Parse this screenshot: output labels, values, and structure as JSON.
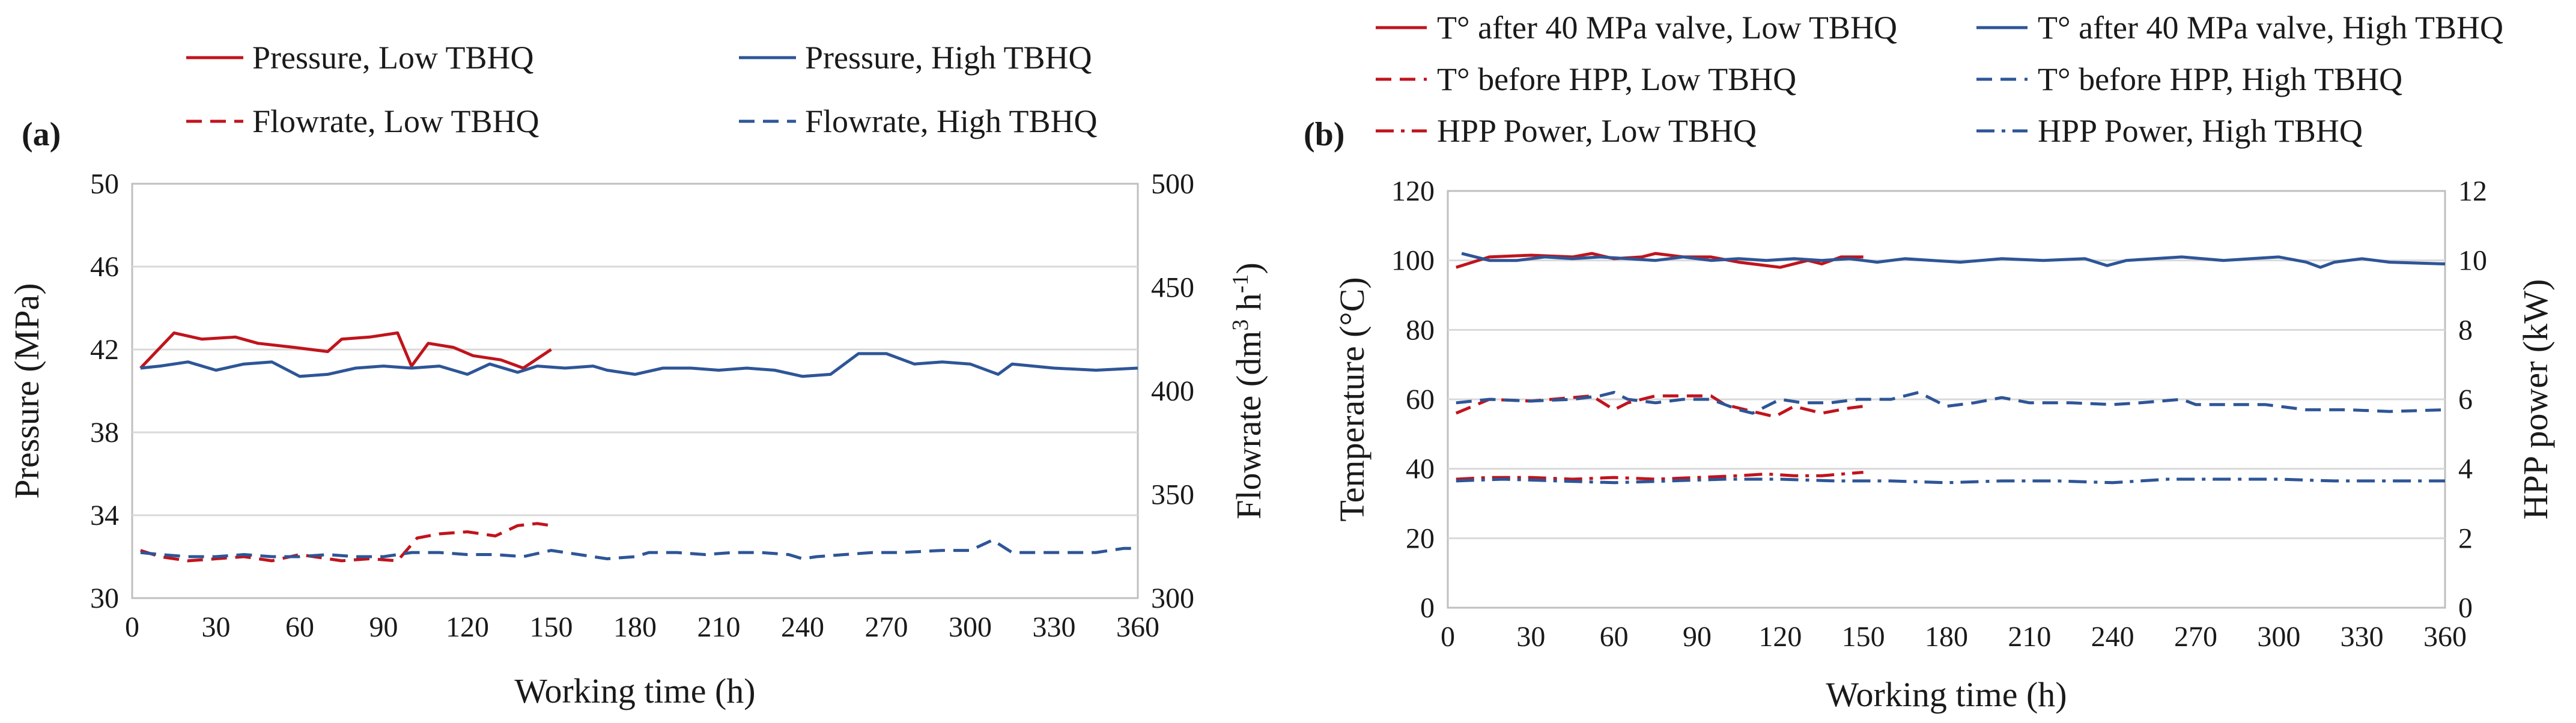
{
  "colors": {
    "low": "#c0141c",
    "high": "#2e5597",
    "grid": "#d9d9d9",
    "axis": "#bfbfbf"
  },
  "chart_data": [
    {
      "panel_label": "(a)",
      "type": "line",
      "xlabel": "Working time (h)",
      "ylabel_left": "Pressure (MPa)",
      "ylabel_right": "Flowrate (dm³ h⁻¹)",
      "ylabel_right_main": "Flowrate (dm",
      "ylabel_right_sup1": "3",
      "ylabel_right_mid": " h",
      "ylabel_right_sup2": "-1",
      "ylabel_right_end": ")",
      "xlim": [
        0,
        360
      ],
      "ylim_left": [
        30,
        50
      ],
      "ylim_right": [
        300,
        500
      ],
      "x_ticks": [
        "0",
        "30",
        "60",
        "90",
        "120",
        "150",
        "180",
        "210",
        "240",
        "270",
        "300",
        "330",
        "360"
      ],
      "y_ticks_left": [
        "30",
        "34",
        "38",
        "42",
        "46",
        "50"
      ],
      "y_ticks_right": [
        "300",
        "350",
        "400",
        "450",
        "500"
      ],
      "grid": true,
      "legend_position": "top",
      "series": [
        {
          "name": "Pressure, Low TBHQ",
          "color": "low",
          "dash": "solid",
          "axis": "left",
          "points": [
            [
              3,
              41.1
            ],
            [
              15,
              42.8
            ],
            [
              25,
              42.5
            ],
            [
              37,
              42.6
            ],
            [
              45,
              42.3
            ],
            [
              58,
              42.1
            ],
            [
              70,
              41.9
            ],
            [
              75,
              42.5
            ],
            [
              85,
              42.6
            ],
            [
              95,
              42.8
            ],
            [
              100,
              41.2
            ],
            [
              106,
              42.3
            ],
            [
              115,
              42.1
            ],
            [
              122,
              41.7
            ],
            [
              132,
              41.5
            ],
            [
              140,
              41.1
            ],
            [
              150,
              42.0
            ]
          ]
        },
        {
          "name": "Pressure, High TBHQ",
          "color": "high",
          "dash": "solid",
          "axis": "left",
          "points": [
            [
              3,
              41.1
            ],
            [
              10,
              41.2
            ],
            [
              20,
              41.4
            ],
            [
              30,
              41.0
            ],
            [
              40,
              41.3
            ],
            [
              50,
              41.4
            ],
            [
              60,
              40.7
            ],
            [
              70,
              40.8
            ],
            [
              80,
              41.1
            ],
            [
              90,
              41.2
            ],
            [
              100,
              41.1
            ],
            [
              110,
              41.2
            ],
            [
              120,
              40.8
            ],
            [
              128,
              41.3
            ],
            [
              138,
              40.9
            ],
            [
              145,
              41.2
            ],
            [
              155,
              41.1
            ],
            [
              165,
              41.2
            ],
            [
              170,
              41.0
            ],
            [
              180,
              40.8
            ],
            [
              190,
              41.1
            ],
            [
              200,
              41.1
            ],
            [
              210,
              41.0
            ],
            [
              220,
              41.1
            ],
            [
              230,
              41.0
            ],
            [
              240,
              40.7
            ],
            [
              250,
              40.8
            ],
            [
              260,
              41.8
            ],
            [
              270,
              41.8
            ],
            [
              280,
              41.3
            ],
            [
              290,
              41.4
            ],
            [
              300,
              41.3
            ],
            [
              310,
              40.8
            ],
            [
              315,
              41.3
            ],
            [
              330,
              41.1
            ],
            [
              345,
              41.0
            ],
            [
              360,
              41.1
            ]
          ]
        },
        {
          "name": "Flowrate, Low TBHQ",
          "color": "low",
          "dash": "dash",
          "axis": "right",
          "points": [
            [
              3,
              323
            ],
            [
              10,
              320
            ],
            [
              20,
              318
            ],
            [
              30,
              319
            ],
            [
              40,
              320
            ],
            [
              50,
              318
            ],
            [
              60,
              321
            ],
            [
              65,
              320
            ],
            [
              75,
              318
            ],
            [
              85,
              319
            ],
            [
              95,
              318
            ],
            [
              102,
              329
            ],
            [
              110,
              331
            ],
            [
              120,
              332
            ],
            [
              130,
              330
            ],
            [
              138,
              335
            ],
            [
              145,
              336
            ],
            [
              150,
              335
            ]
          ]
        },
        {
          "name": "Flowrate, High TBHQ",
          "color": "high",
          "dash": "dash",
          "axis": "right",
          "points": [
            [
              3,
              322
            ],
            [
              10,
              321
            ],
            [
              20,
              320
            ],
            [
              30,
              320
            ],
            [
              40,
              321
            ],
            [
              50,
              320
            ],
            [
              60,
              320
            ],
            [
              70,
              321
            ],
            [
              80,
              320
            ],
            [
              90,
              320
            ],
            [
              100,
              322
            ],
            [
              110,
              322
            ],
            [
              120,
              321
            ],
            [
              130,
              321
            ],
            [
              140,
              320
            ],
            [
              150,
              323
            ],
            [
              160,
              321
            ],
            [
              170,
              319
            ],
            [
              180,
              320
            ],
            [
              185,
              322
            ],
            [
              195,
              322
            ],
            [
              205,
              321
            ],
            [
              215,
              322
            ],
            [
              225,
              322
            ],
            [
              235,
              321
            ],
            [
              240,
              319
            ],
            [
              245,
              320
            ],
            [
              255,
              321
            ],
            [
              265,
              322
            ],
            [
              275,
              322
            ],
            [
              290,
              323
            ],
            [
              300,
              323
            ],
            [
              308,
              328
            ],
            [
              315,
              322
            ],
            [
              325,
              322
            ],
            [
              335,
              322
            ],
            [
              345,
              322
            ],
            [
              355,
              324
            ],
            [
              360,
              324
            ]
          ]
        }
      ]
    },
    {
      "panel_label": "(b)",
      "type": "line",
      "xlabel": "Working time (h)",
      "ylabel_left": "Temperature (°C)",
      "ylabel_right": "HPP power  (kW)",
      "xlim": [
        0,
        360
      ],
      "ylim_left": [
        0,
        120
      ],
      "ylim_right": [
        0,
        12
      ],
      "x_ticks": [
        "0",
        "30",
        "60",
        "90",
        "120",
        "150",
        "180",
        "210",
        "240",
        "270",
        "300",
        "330",
        "360"
      ],
      "y_ticks_left": [
        "0",
        "20",
        "40",
        "60",
        "80",
        "100",
        "120"
      ],
      "y_ticks_right": [
        "0",
        "2",
        "4",
        "6",
        "8",
        "10",
        "12"
      ],
      "grid": true,
      "legend_position": "top",
      "series": [
        {
          "name": "T° after 40 MPa valve, Low TBHQ",
          "color": "low",
          "dash": "solid",
          "axis": "left",
          "points": [
            [
              3,
              98
            ],
            [
              15,
              101
            ],
            [
              30,
              101.5
            ],
            [
              45,
              101
            ],
            [
              52,
              102
            ],
            [
              60,
              100.5
            ],
            [
              70,
              101
            ],
            [
              75,
              102
            ],
            [
              85,
              101
            ],
            [
              95,
              101
            ],
            [
              105,
              99.5
            ],
            [
              120,
              98
            ],
            [
              130,
              100
            ],
            [
              135,
              99
            ],
            [
              142,
              101
            ],
            [
              150,
              101
            ]
          ]
        },
        {
          "name": "T° after 40 MPa valve, High TBHQ",
          "color": "high",
          "dash": "solid",
          "axis": "left",
          "points": [
            [
              5,
              102
            ],
            [
              15,
              100
            ],
            [
              25,
              100
            ],
            [
              35,
              101
            ],
            [
              45,
              100.5
            ],
            [
              55,
              101
            ],
            [
              65,
              100.5
            ],
            [
              75,
              100
            ],
            [
              85,
              101
            ],
            [
              95,
              100
            ],
            [
              105,
              100.5
            ],
            [
              115,
              100
            ],
            [
              125,
              100.5
            ],
            [
              135,
              100
            ],
            [
              145,
              100.5
            ],
            [
              155,
              99.5
            ],
            [
              165,
              100.5
            ],
            [
              175,
              100
            ],
            [
              185,
              99.5
            ],
            [
              200,
              100.5
            ],
            [
              215,
              100
            ],
            [
              230,
              100.5
            ],
            [
              238,
              98.5
            ],
            [
              245,
              100
            ],
            [
              255,
              100.5
            ],
            [
              265,
              101
            ],
            [
              280,
              100
            ],
            [
              290,
              100.5
            ],
            [
              300,
              101
            ],
            [
              310,
              99.5
            ],
            [
              315,
              98
            ],
            [
              320,
              99.5
            ],
            [
              330,
              100.5
            ],
            [
              340,
              99.5
            ],
            [
              360,
              99
            ]
          ]
        },
        {
          "name": "T° before HPP, Low TBHQ",
          "color": "low",
          "dash": "dash",
          "axis": "left",
          "points": [
            [
              3,
              56
            ],
            [
              15,
              60
            ],
            [
              30,
              59.5
            ],
            [
              45,
              60.5
            ],
            [
              52,
              61
            ],
            [
              60,
              57
            ],
            [
              65,
              59
            ],
            [
              75,
              61
            ],
            [
              90,
              61
            ],
            [
              95,
              61
            ],
            [
              100,
              58.5
            ],
            [
              110,
              56.5
            ],
            [
              118,
              55
            ],
            [
              125,
              58
            ],
            [
              135,
              56
            ],
            [
              145,
              57.5
            ],
            [
              150,
              58
            ]
          ]
        },
        {
          "name": "T° before HPP, High TBHQ",
          "color": "high",
          "dash": "dash",
          "axis": "left",
          "points": [
            [
              3,
              59
            ],
            [
              15,
              60
            ],
            [
              30,
              59.5
            ],
            [
              45,
              60
            ],
            [
              55,
              61
            ],
            [
              60,
              62
            ],
            [
              65,
              60
            ],
            [
              75,
              59
            ],
            [
              85,
              60
            ],
            [
              95,
              60
            ],
            [
              105,
              57
            ],
            [
              110,
              56
            ],
            [
              120,
              60
            ],
            [
              128,
              59
            ],
            [
              138,
              59
            ],
            [
              148,
              60
            ],
            [
              160,
              60
            ],
            [
              170,
              62
            ],
            [
              180,
              58
            ],
            [
              190,
              59
            ],
            [
              200,
              60.5
            ],
            [
              210,
              59
            ],
            [
              225,
              59
            ],
            [
              240,
              58.5
            ],
            [
              250,
              59
            ],
            [
              265,
              60
            ],
            [
              270,
              58.5
            ],
            [
              280,
              58.5
            ],
            [
              295,
              58.5
            ],
            [
              310,
              57
            ],
            [
              325,
              57
            ],
            [
              340,
              56.5
            ],
            [
              360,
              57
            ]
          ]
        },
        {
          "name": "HPP Power, Low TBHQ",
          "color": "low",
          "dash": "dashdot",
          "axis": "right",
          "points": [
            [
              3,
              3.7
            ],
            [
              15,
              3.75
            ],
            [
              30,
              3.75
            ],
            [
              45,
              3.7
            ],
            [
              60,
              3.75
            ],
            [
              75,
              3.7
            ],
            [
              90,
              3.75
            ],
            [
              105,
              3.8
            ],
            [
              115,
              3.85
            ],
            [
              125,
              3.8
            ],
            [
              135,
              3.8
            ],
            [
              150,
              3.9
            ]
          ]
        },
        {
          "name": "HPP Power, High TBHQ",
          "color": "high",
          "dash": "dashdot",
          "axis": "right",
          "points": [
            [
              3,
              3.65
            ],
            [
              20,
              3.7
            ],
            [
              40,
              3.65
            ],
            [
              60,
              3.6
            ],
            [
              80,
              3.65
            ],
            [
              100,
              3.7
            ],
            [
              120,
              3.7
            ],
            [
              140,
              3.65
            ],
            [
              160,
              3.65
            ],
            [
              180,
              3.6
            ],
            [
              200,
              3.65
            ],
            [
              220,
              3.65
            ],
            [
              240,
              3.6
            ],
            [
              260,
              3.7
            ],
            [
              280,
              3.7
            ],
            [
              300,
              3.7
            ],
            [
              320,
              3.65
            ],
            [
              340,
              3.65
            ],
            [
              360,
              3.65
            ]
          ]
        }
      ]
    }
  ]
}
